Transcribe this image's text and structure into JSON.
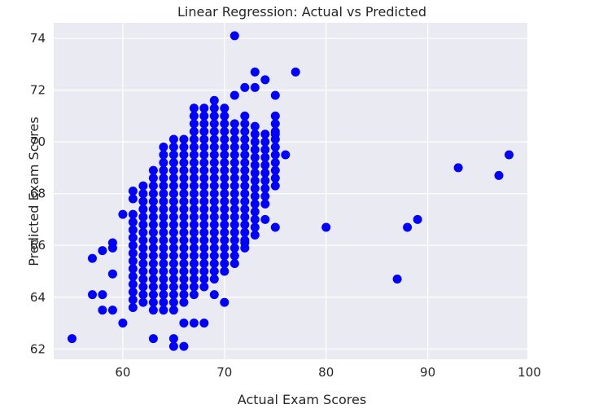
{
  "chart_data": {
    "type": "scatter",
    "title": "Linear Regression: Actual vs Predicted",
    "xlabel": "Actual Exam Scores",
    "ylabel": "Predicted Exam Scores",
    "xlim": [
      53.2,
      99.8
    ],
    "ylim": [
      61.6,
      74.6
    ],
    "xticks": [
      60,
      70,
      80,
      90,
      100
    ],
    "yticks": [
      62,
      64,
      66,
      68,
      70,
      72,
      74
    ],
    "grid": true,
    "colors": {
      "background": "#eaeaf2",
      "grid": "#ffffff",
      "points": "#0000ff"
    },
    "outliers": [
      {
        "x": 55,
        "y": 62.4
      },
      {
        "x": 57,
        "y": 65.5
      },
      {
        "x": 57,
        "y": 64.1
      },
      {
        "x": 58,
        "y": 64.1
      },
      {
        "x": 58,
        "y": 63.5
      },
      {
        "x": 58,
        "y": 65.8
      },
      {
        "x": 59,
        "y": 65.9
      },
      {
        "x": 59,
        "y": 66.1
      },
      {
        "x": 59,
        "y": 63.5
      },
      {
        "x": 59,
        "y": 64.9
      },
      {
        "x": 60,
        "y": 63.0
      },
      {
        "x": 60,
        "y": 67.2
      },
      {
        "x": 61,
        "y": 68.1
      },
      {
        "x": 61,
        "y": 67.8
      },
      {
        "x": 63,
        "y": 62.4
      },
      {
        "x": 65,
        "y": 62.4
      },
      {
        "x": 65,
        "y": 62.1
      },
      {
        "x": 66,
        "y": 62.1
      },
      {
        "x": 66,
        "y": 63.0
      },
      {
        "x": 67,
        "y": 63.0
      },
      {
        "x": 68,
        "y": 63.0
      },
      {
        "x": 69,
        "y": 64.1
      },
      {
        "x": 70,
        "y": 63.8
      },
      {
        "x": 71,
        "y": 74.1
      },
      {
        "x": 71,
        "y": 71.8
      },
      {
        "x": 72,
        "y": 72.1
      },
      {
        "x": 72,
        "y": 66.1
      },
      {
        "x": 73,
        "y": 72.7
      },
      {
        "x": 73,
        "y": 72.1
      },
      {
        "x": 74,
        "y": 72.4
      },
      {
        "x": 74,
        "y": 67.0
      },
      {
        "x": 75,
        "y": 71.8
      },
      {
        "x": 75,
        "y": 70.3
      },
      {
        "x": 75,
        "y": 66.7
      },
      {
        "x": 76,
        "y": 69.5
      },
      {
        "x": 77,
        "y": 72.7
      },
      {
        "x": 80,
        "y": 66.7
      },
      {
        "x": 87,
        "y": 64.7
      },
      {
        "x": 88,
        "y": 66.7
      },
      {
        "x": 89,
        "y": 67.0
      },
      {
        "x": 93,
        "y": 69.0
      },
      {
        "x": 97,
        "y": 68.7
      },
      {
        "x": 98,
        "y": 69.5
      }
    ],
    "dense_cluster": [
      {
        "x": 61,
        "range": [
          63.6,
          67.2
        ]
      },
      {
        "x": 62,
        "range": [
          63.8,
          68.4
        ]
      },
      {
        "x": 63,
        "range": [
          63.5,
          68.9
        ]
      },
      {
        "x": 64,
        "range": [
          63.5,
          69.8
        ]
      },
      {
        "x": 65,
        "range": [
          63.5,
          70.1
        ]
      },
      {
        "x": 66,
        "range": [
          63.8,
          70.1
        ]
      },
      {
        "x": 67,
        "range": [
          64.1,
          71.5
        ]
      },
      {
        "x": 68,
        "range": [
          64.4,
          71.5
        ]
      },
      {
        "x": 69,
        "range": [
          64.7,
          71.8
        ]
      },
      {
        "x": 70,
        "range": [
          65.0,
          71.5
        ]
      },
      {
        "x": 71,
        "range": [
          65.3,
          70.7
        ]
      },
      {
        "x": 72,
        "range": [
          65.9,
          71.2
        ]
      },
      {
        "x": 73,
        "range": [
          66.4,
          70.7
        ]
      },
      {
        "x": 74,
        "range": [
          67.6,
          70.4
        ]
      },
      {
        "x": 75,
        "range": [
          68.3,
          71.2
        ]
      }
    ]
  }
}
